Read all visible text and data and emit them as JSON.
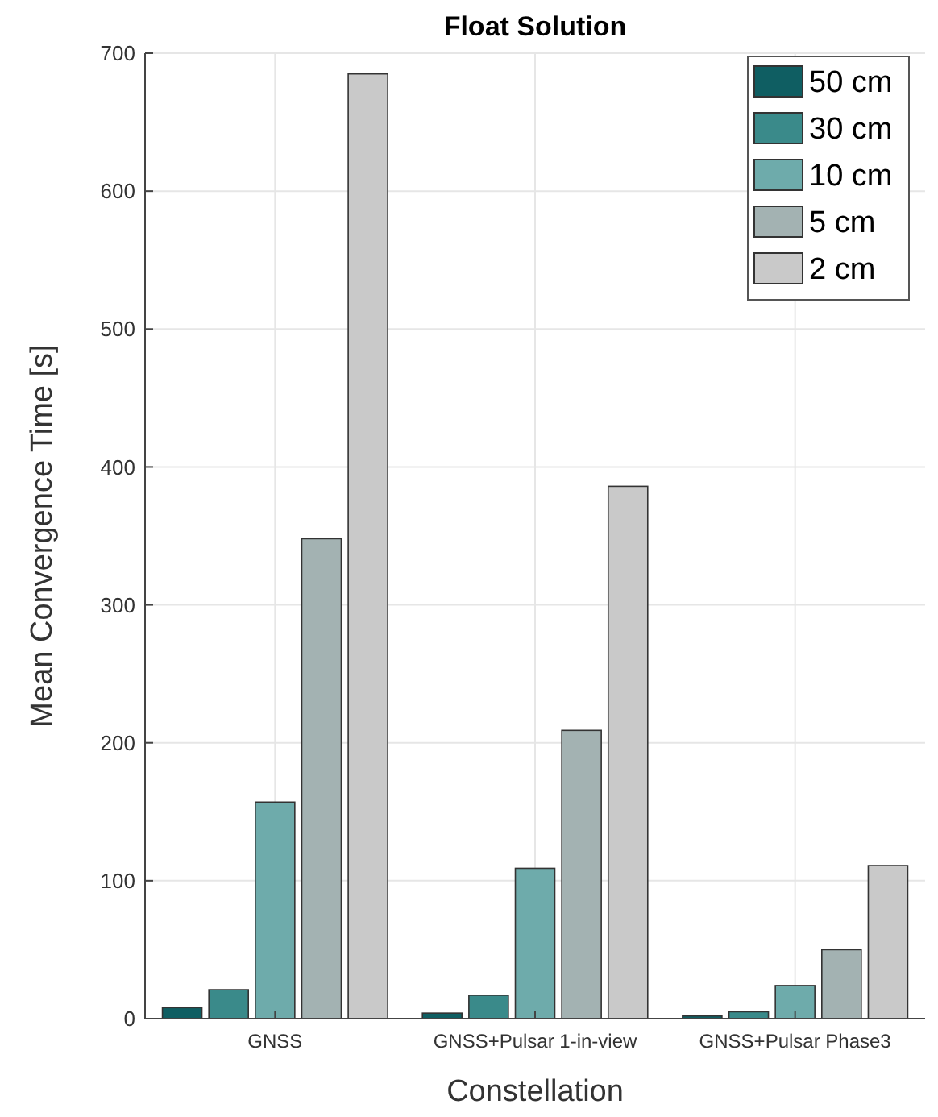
{
  "chart_data": {
    "type": "bar",
    "title": "Float Solution",
    "xlabel": "Constellation",
    "ylabel": "Mean Convergence Time [s]",
    "categories": [
      "GNSS",
      "GNSS+Pulsar 1-in-view",
      "GNSS+Pulsar Phase3"
    ],
    "series": [
      {
        "name": "50 cm",
        "color": "#0f5e62",
        "values": [
          8,
          4,
          2
        ]
      },
      {
        "name": "30 cm",
        "color": "#3a8a8a",
        "values": [
          21,
          17,
          5
        ]
      },
      {
        "name": "10 cm",
        "color": "#6eabab",
        "values": [
          157,
          109,
          24
        ]
      },
      {
        "name": "5 cm",
        "color": "#a3b2b2",
        "values": [
          348,
          209,
          50
        ]
      },
      {
        "name": "2 cm",
        "color": "#c9c9c9",
        "values": [
          685,
          386,
          111
        ]
      }
    ],
    "ylim": [
      0,
      700
    ],
    "yticks": [
      0,
      100,
      200,
      300,
      400,
      500,
      600,
      700
    ],
    "grid": true,
    "legend": "top right"
  }
}
